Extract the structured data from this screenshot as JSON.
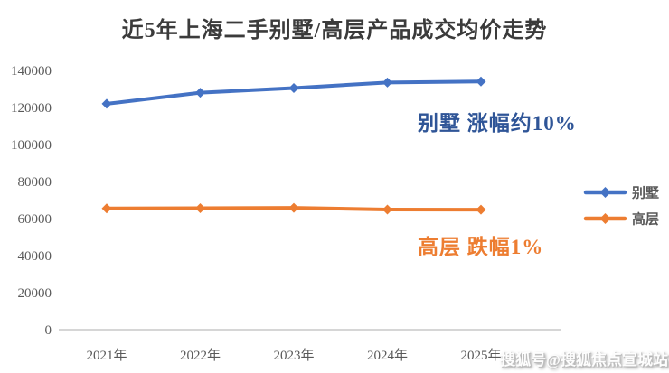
{
  "title": "近5年上海二手别墅/高层产品成交均价走势",
  "watermark": "搜狐号@搜狐焦点宣城站",
  "annotations": {
    "villa": {
      "text": "别墅 涨幅约10%",
      "color": "#2F5597"
    },
    "highrise": {
      "text": "高层 跌幅1%",
      "color": "#ED7D31"
    }
  },
  "axis": {
    "label_color": "#595959",
    "line_color": "#D6D6D6"
  },
  "chart_data": {
    "type": "line",
    "title": "近5年上海二手别墅/高层产品成交均价走势",
    "categories": [
      "2021年",
      "2022年",
      "2023年",
      "2024年",
      "2025年"
    ],
    "series": [
      {
        "name": "别墅",
        "color": "#4472C4",
        "values": [
          122000,
          128000,
          130500,
          133500,
          134000
        ]
      },
      {
        "name": "高层",
        "color": "#ED7D31",
        "values": [
          65500,
          65600,
          65800,
          64900,
          64800
        ]
      }
    ],
    "ylim": [
      0,
      140000
    ],
    "y_tick_step": 20000,
    "y_tick_labels": [
      "0",
      "20000",
      "40000",
      "60000",
      "80000",
      "100000",
      "120000",
      "140000"
    ],
    "xlabel": "",
    "ylabel": "",
    "grid": false,
    "legend_position": "right",
    "marker": "diamond"
  }
}
